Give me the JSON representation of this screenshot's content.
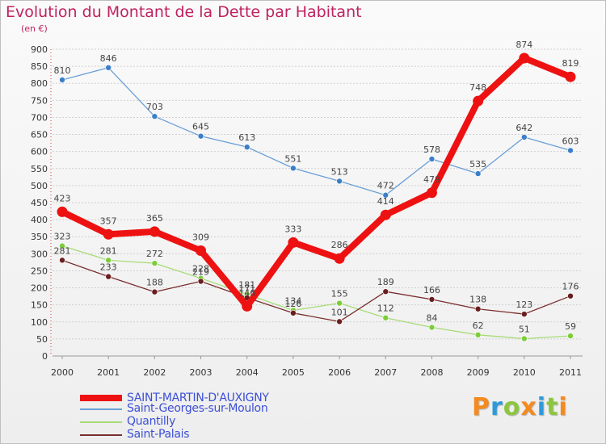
{
  "title": "Evolution du Montant de la Dette par Habitant",
  "subtitle": "(en €)",
  "logo": "Proxiti",
  "logo_colors": [
    "#f58a1f",
    "#2f9ad8",
    "#8cc63f",
    "#f58a1f",
    "#2f9ad8",
    "#8cc63f",
    "#f58a1f"
  ],
  "colors": {
    "title": "#c0225f",
    "grid": "#d0d0d0",
    "legend_text": "#3c4fd6"
  },
  "chart_data": {
    "type": "line",
    "x": [
      "2000",
      "2001",
      "2002",
      "2003",
      "2004",
      "2005",
      "2006",
      "2007",
      "2008",
      "2009",
      "2010",
      "2011"
    ],
    "ylim": [
      0,
      900
    ],
    "yticks": [
      0,
      50,
      100,
      150,
      200,
      250,
      300,
      350,
      400,
      450,
      500,
      550,
      600,
      650,
      700,
      750,
      800,
      850,
      900
    ],
    "grid": "horizontal dashed",
    "legend": "bottom-left",
    "series": [
      {
        "name": "Saint-Georges-sur-Moulon",
        "color": "#6a9fd6",
        "marker": "#3a7fc8",
        "values": [
          810,
          846,
          703,
          645,
          613,
          551,
          513,
          472,
          578,
          535,
          642,
          603
        ]
      },
      {
        "name": "Quantilly",
        "color": "#a8dc78",
        "marker": "#7ccc3a",
        "values": [
          323,
          281,
          272,
          228,
          181,
          134,
          155,
          112,
          84,
          62,
          51,
          59
        ]
      },
      {
        "name": "Saint-Palais",
        "color": "#7a2e2e",
        "marker": "#6a1e1e",
        "values": [
          281,
          233,
          188,
          219,
          171,
          126,
          101,
          189,
          166,
          138,
          123,
          176
        ]
      },
      {
        "name": "SAINT-MARTIN-D'AUXIGNY",
        "color": "#ee1111",
        "marker": "#ee1111",
        "values": [
          423,
          357,
          365,
          309,
          146,
          333,
          286,
          414,
          479,
          748,
          874,
          819
        ]
      }
    ]
  }
}
